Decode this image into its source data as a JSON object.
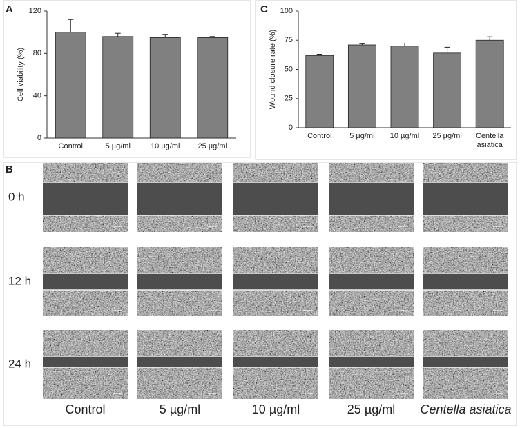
{
  "chart_data": [
    {
      "type": "bar",
      "panel_label": "A",
      "y_label": "Cell viability (%)",
      "categories": [
        "Control",
        "5 µg/ml",
        "10 µg/ml",
        "25 µg/ml"
      ],
      "values": [
        100,
        96,
        95,
        95
      ],
      "errors": [
        12,
        3,
        3,
        1
      ],
      "color": "#808080",
      "ylim": [
        0,
        120
      ],
      "yticks": [
        0,
        40,
        80,
        120
      ]
    },
    {
      "type": "bar",
      "panel_label": "C",
      "y_label": "Wound closure rate (%)",
      "categories": [
        "Control",
        "5 µg/ml",
        "10 µg/ml",
        "25 µg/ml",
        "Centella asiatica"
      ],
      "values": [
        62,
        71,
        70,
        64,
        75
      ],
      "errors": [
        1,
        1,
        2.5,
        5,
        3
      ],
      "color": "#808080",
      "ylim": [
        0,
        100
      ],
      "yticks": [
        0,
        25,
        50,
        75,
        100
      ]
    }
  ],
  "panel_b": {
    "panel_label": "B",
    "row_labels": [
      "0 h",
      "12 h",
      "24 h"
    ],
    "column_labels": [
      "Control",
      "5 µg/ml",
      "10 µg/ml",
      "25 µg/ml",
      "Centella asiatica"
    ]
  }
}
